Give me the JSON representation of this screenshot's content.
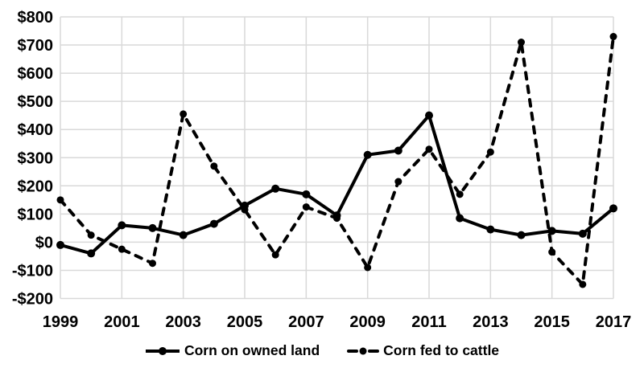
{
  "chart_data": {
    "type": "line",
    "title": "",
    "xlabel": "",
    "ylabel": "",
    "x": [
      1999,
      2000,
      2001,
      2002,
      2003,
      2004,
      2005,
      2006,
      2007,
      2008,
      2009,
      2010,
      2011,
      2012,
      2013,
      2014,
      2015,
      2016,
      2017
    ],
    "series": [
      {
        "name": "Corn on owned land",
        "style": "solid",
        "values": [
          -10,
          -40,
          60,
          50,
          25,
          65,
          130,
          190,
          170,
          95,
          310,
          325,
          450,
          85,
          45,
          25,
          40,
          30,
          120
        ]
      },
      {
        "name": "Corn fed to cattle",
        "style": "dashed",
        "values": [
          150,
          25,
          -25,
          -75,
          455,
          270,
          115,
          -45,
          125,
          85,
          -90,
          215,
          330,
          170,
          320,
          710,
          -35,
          -150,
          730
        ]
      }
    ],
    "ylim": [
      -200,
      800
    ],
    "y_tick_step": 100,
    "y_tick_labels": [
      "-$200",
      "-$100",
      "$0",
      "$100",
      "$200",
      "$300",
      "$400",
      "$500",
      "$600",
      "$700",
      "$800"
    ],
    "x_tick_labels": [
      "1999",
      "2001",
      "2003",
      "2005",
      "2007",
      "2009",
      "2011",
      "2013",
      "2015",
      "2017"
    ],
    "x_tick_years": [
      1999,
      2001,
      2003,
      2005,
      2007,
      2009,
      2011,
      2013,
      2015,
      2017
    ],
    "grid": true,
    "legend_position": "bottom",
    "colors": {
      "line": "#000000",
      "grid": "#d9d9d9",
      "text": "#000000",
      "background": "#ffffff"
    }
  }
}
